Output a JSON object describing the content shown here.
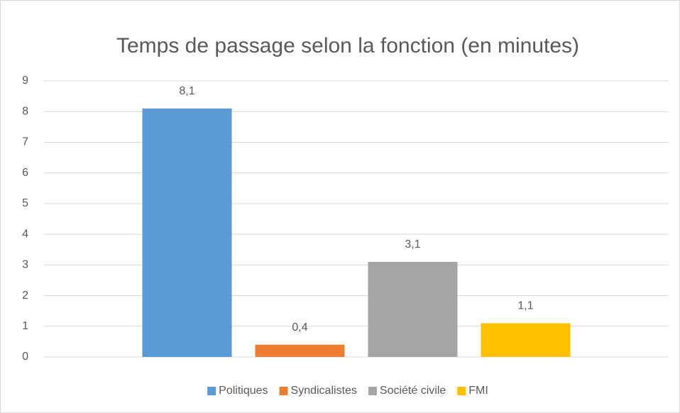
{
  "chart_data": {
    "type": "bar",
    "title": "Temps de passage selon la fonction (en minutes)",
    "categories": [
      null
    ],
    "series": [
      {
        "name": "Politiques",
        "color": "#5b9bd5",
        "values": [
          8.1
        ],
        "value_labels": [
          "8,1"
        ]
      },
      {
        "name": "Syndicalistes",
        "color": "#ed7d31",
        "values": [
          0.4
        ],
        "value_labels": [
          "0,4"
        ]
      },
      {
        "name": "Société civile",
        "color": "#a5a5a5",
        "values": [
          3.1
        ],
        "value_labels": [
          "3,1"
        ]
      },
      {
        "name": "FMI",
        "color": "#ffc000",
        "values": [
          1.1
        ],
        "value_labels": [
          "1,1"
        ]
      }
    ],
    "ylim": [
      0,
      9
    ],
    "yticks": [
      0,
      1,
      2,
      3,
      4,
      5,
      6,
      7,
      8,
      9
    ],
    "grid": true,
    "legend": "bottom"
  }
}
